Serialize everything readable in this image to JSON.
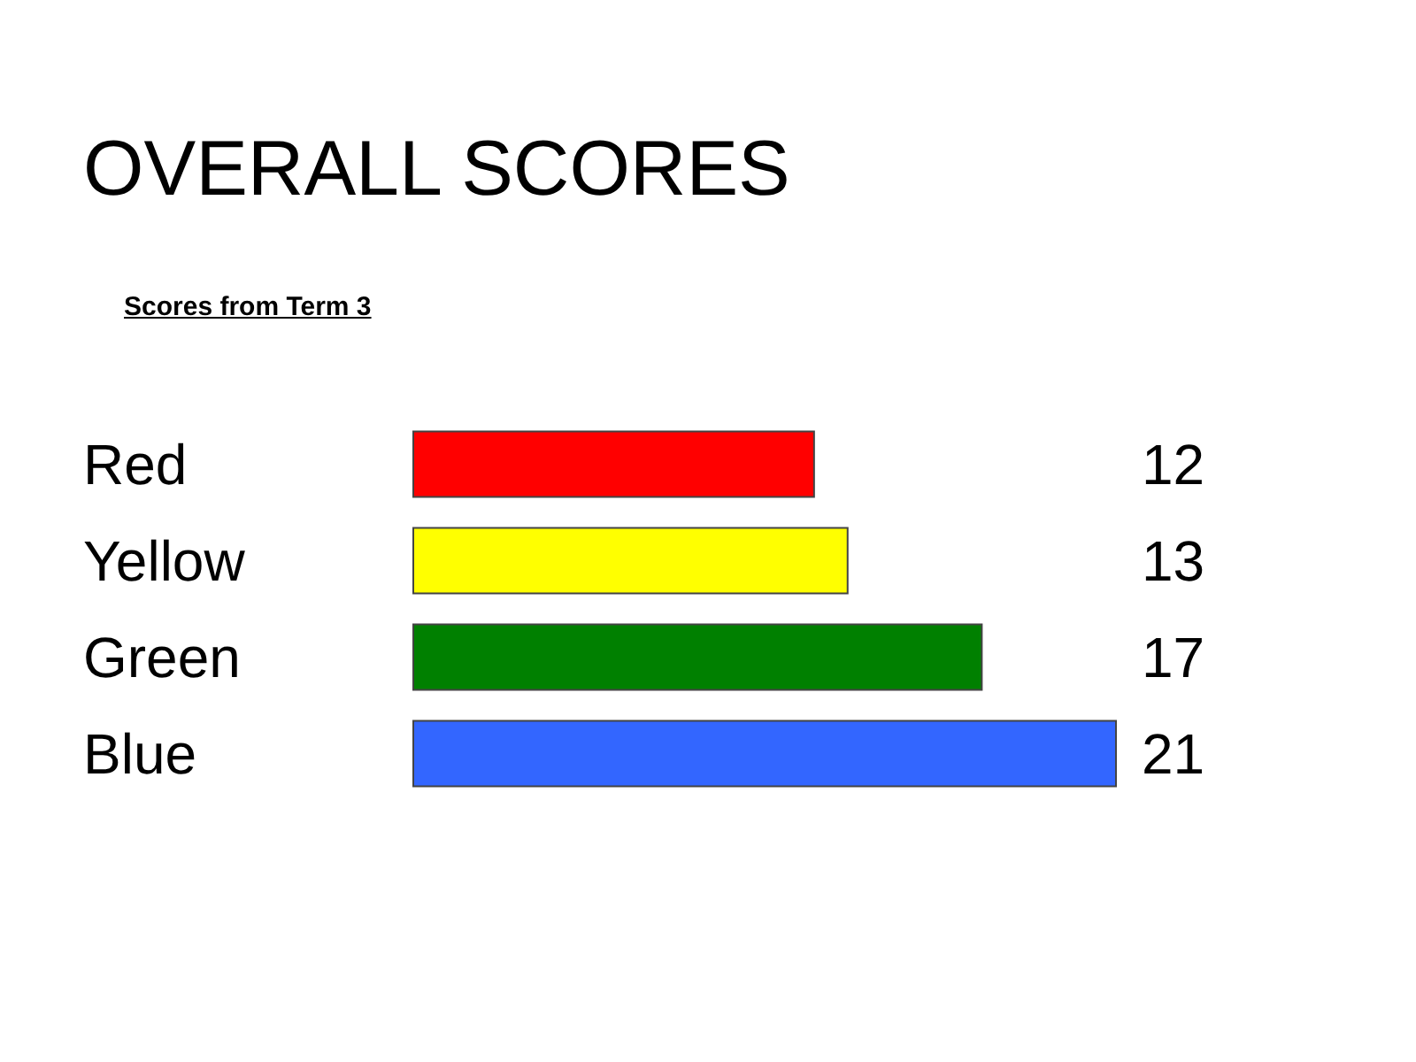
{
  "chart_data": {
    "type": "bar",
    "orientation": "horizontal",
    "title": "OVERALL SCORES",
    "subtitle": "Scores from Term 3",
    "categories": [
      "Red",
      "Yellow",
      "Green",
      "Blue"
    ],
    "values": [
      12,
      13,
      17,
      21
    ],
    "colors": [
      "#ff0000",
      "#ffff00",
      "#008000",
      "#3366ff"
    ],
    "data_labels": true,
    "tick_labels": "y"
  }
}
